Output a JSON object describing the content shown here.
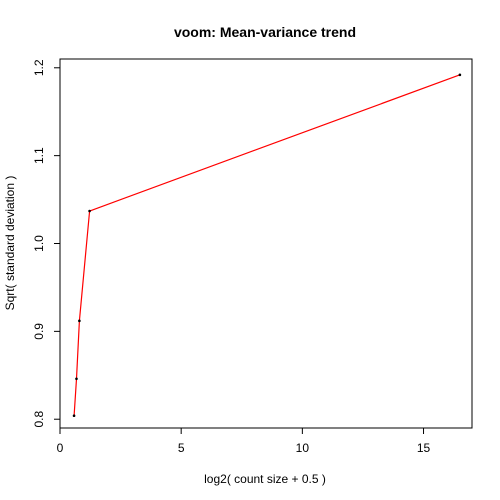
{
  "chart_data": {
    "type": "line",
    "title": "voom: Mean-variance trend",
    "xlabel": "log2( count size + 0.5 )",
    "ylabel": "Sqrt( standard deviation )",
    "xlim": [
      0,
      17
    ],
    "ylim": [
      0.79,
      1.21
    ],
    "xticks": [
      0,
      5,
      10,
      15
    ],
    "yticks": [
      0.8,
      0.9,
      1.0,
      1.1,
      1.2
    ],
    "xtick_labels": [
      "0",
      "5",
      "10",
      "15"
    ],
    "ytick_labels": [
      "0.8",
      "0.9",
      "1.0",
      "1.1",
      "1.2"
    ],
    "grid": false,
    "points": {
      "x": [
        0.58,
        0.68,
        0.8,
        1.22,
        16.5
      ],
      "y": [
        0.804,
        0.846,
        0.912,
        1.037,
        1.192
      ],
      "color": "#000000"
    },
    "series": [
      {
        "x": [
          0.58,
          0.68,
          0.8,
          1.22,
          16.5
        ],
        "y": [
          0.804,
          0.846,
          0.912,
          1.037,
          1.192
        ],
        "color": "#ff0000"
      }
    ]
  }
}
